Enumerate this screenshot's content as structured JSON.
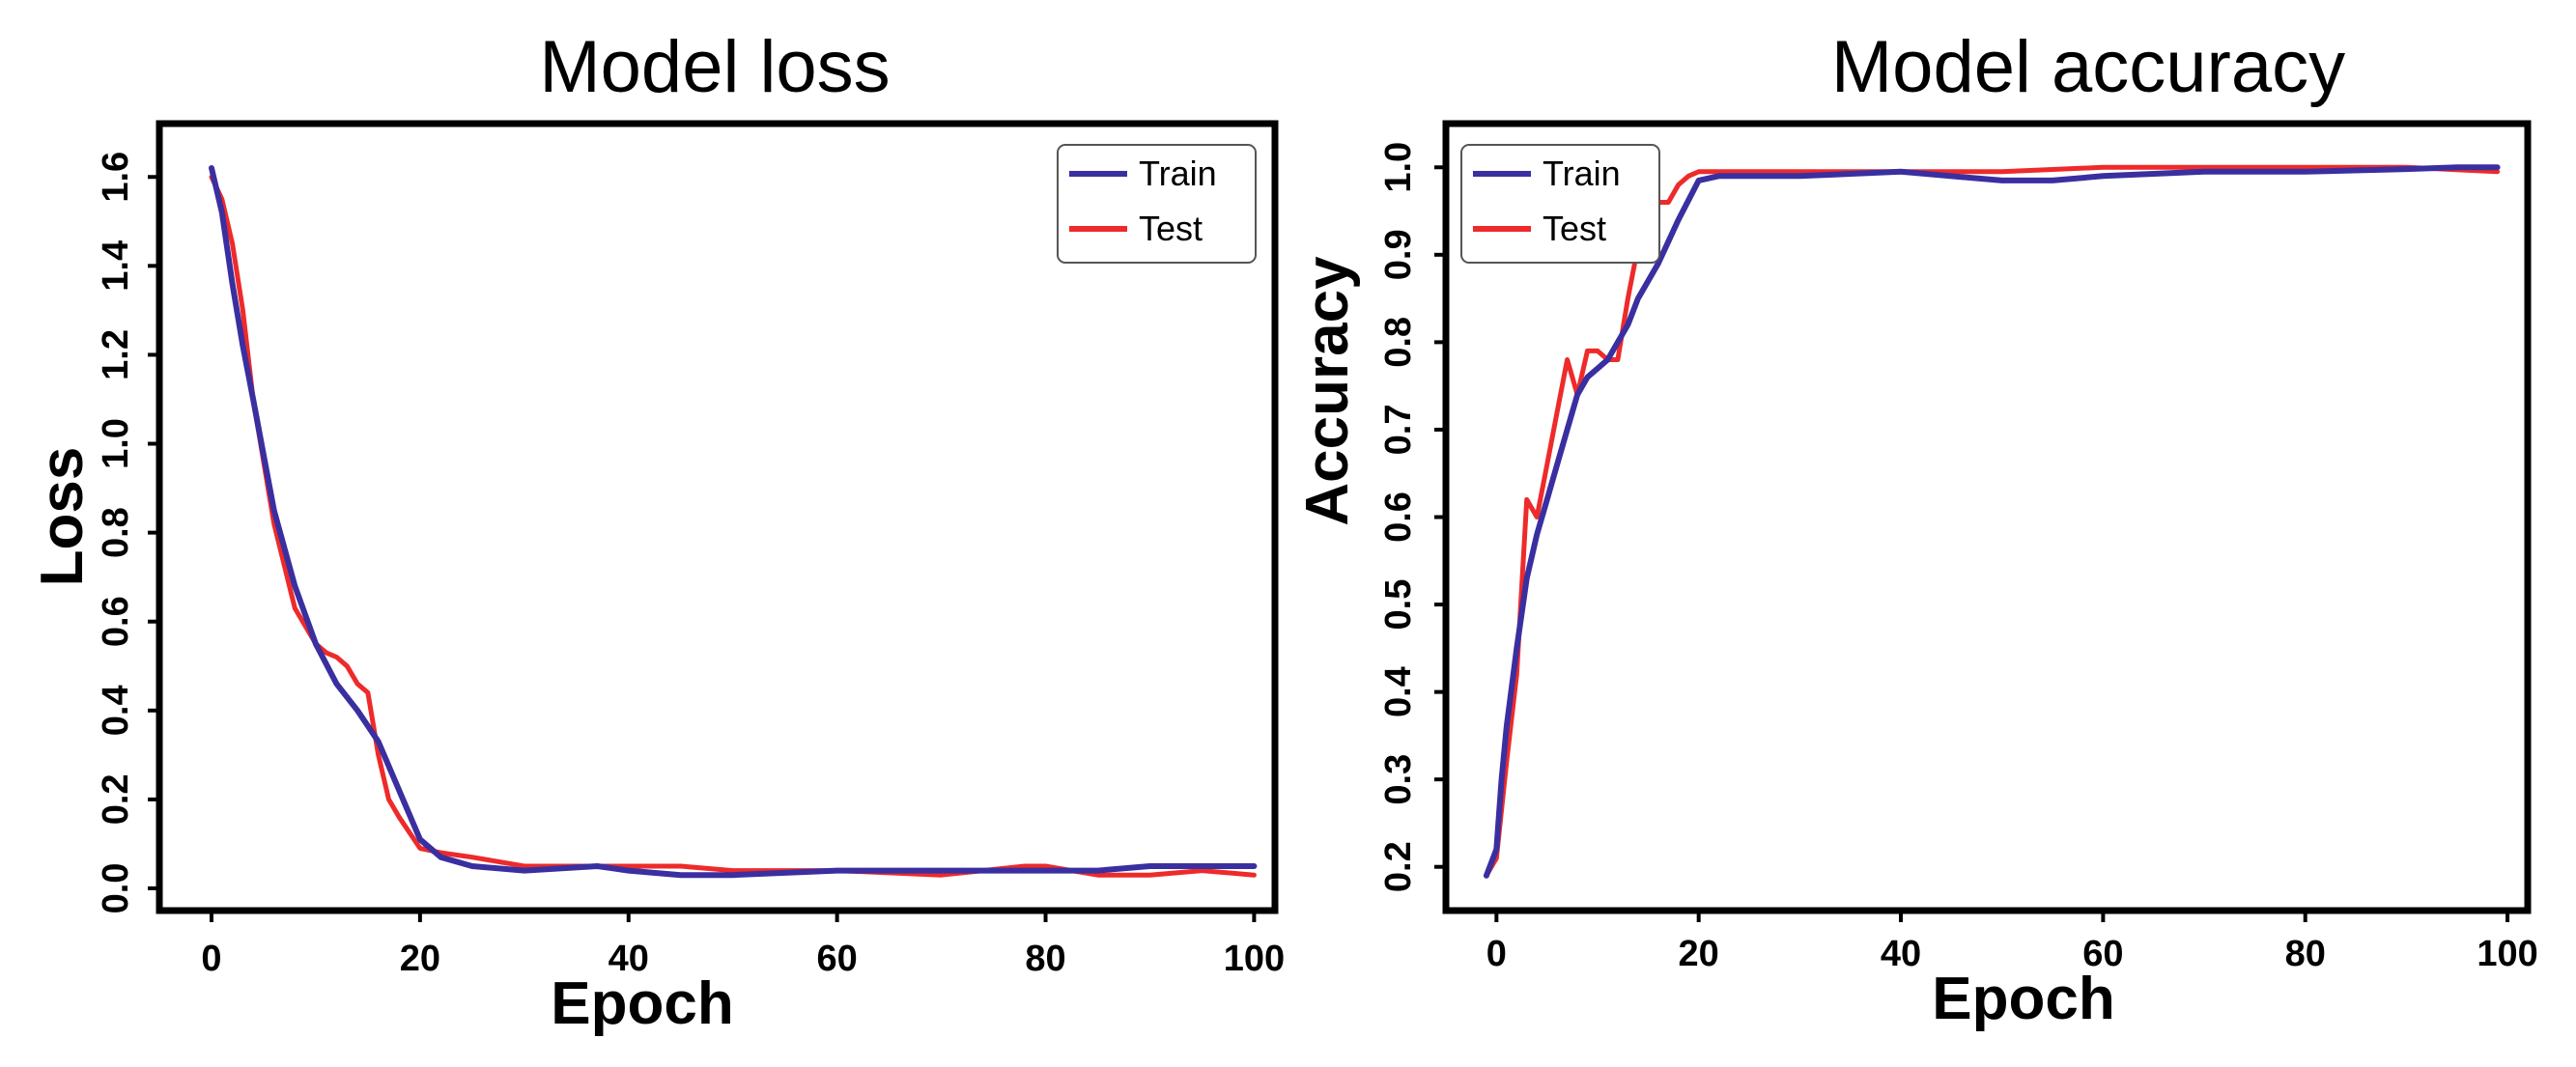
{
  "colors": {
    "train": "#3a2fa0",
    "test": "#ee2a2a"
  },
  "chart_data": [
    {
      "type": "line",
      "title": "Model loss",
      "xlabel": "Epoch",
      "ylabel": "Loss",
      "xlim": [
        -5,
        102
      ],
      "ylim": [
        -0.05,
        1.72
      ],
      "xticks": [
        0,
        20,
        40,
        60,
        80,
        100
      ],
      "xtick_labels": [
        "0",
        "20",
        "40",
        "60",
        "80",
        "100"
      ],
      "yticks": [
        0.0,
        0.2,
        0.4,
        0.6,
        0.8,
        1.0,
        1.2,
        1.4,
        1.6
      ],
      "ytick_labels": [
        "0.0",
        "0.2",
        "0.4",
        "0.6",
        "0.8",
        "1.0",
        "1.2",
        "1.4",
        "1.6"
      ],
      "legend": {
        "position": "top-right",
        "entries": [
          "Train",
          "Test"
        ]
      },
      "series": [
        {
          "name": "Train",
          "x": [
            0,
            1,
            2,
            3,
            4,
            6,
            8,
            10,
            12,
            14,
            16,
            18,
            20,
            22,
            25,
            30,
            37,
            40,
            45,
            50,
            60,
            70,
            80,
            85,
            90,
            95,
            100
          ],
          "y": [
            1.62,
            1.52,
            1.36,
            1.22,
            1.1,
            0.85,
            0.68,
            0.55,
            0.46,
            0.4,
            0.33,
            0.22,
            0.11,
            0.07,
            0.05,
            0.04,
            0.05,
            0.04,
            0.03,
            0.03,
            0.04,
            0.04,
            0.04,
            0.04,
            0.05,
            0.05,
            0.05
          ]
        },
        {
          "name": "Test",
          "x": [
            0,
            1,
            2,
            3,
            4,
            6,
            8,
            10,
            11,
            12,
            13,
            14,
            15,
            16,
            17,
            18,
            20,
            22,
            25,
            30,
            37,
            40,
            45,
            50,
            60,
            70,
            78,
            80,
            85,
            90,
            95,
            100
          ],
          "y": [
            1.6,
            1.55,
            1.45,
            1.3,
            1.1,
            0.82,
            0.63,
            0.55,
            0.53,
            0.52,
            0.5,
            0.46,
            0.44,
            0.3,
            0.2,
            0.16,
            0.09,
            0.08,
            0.07,
            0.05,
            0.05,
            0.05,
            0.05,
            0.04,
            0.04,
            0.03,
            0.05,
            0.05,
            0.03,
            0.03,
            0.04,
            0.03
          ]
        }
      ]
    },
    {
      "type": "line",
      "title": "Model accuracy",
      "xlabel": "Epoch",
      "ylabel": "Accuracy",
      "xlim": [
        -5,
        102
      ],
      "ylim": [
        0.15,
        1.05
      ],
      "xticks": [
        0,
        20,
        40,
        60,
        80,
        100
      ],
      "xtick_labels": [
        "0",
        "20",
        "40",
        "60",
        "80",
        "100"
      ],
      "yticks": [
        0.2,
        0.3,
        0.4,
        0.5,
        0.6,
        0.7,
        0.8,
        0.9,
        1.0
      ],
      "ytick_labels": [
        "0.2",
        "0.3",
        "0.4",
        "0.5",
        "0.6",
        "0.7",
        "0.8",
        "0.9",
        "1.0"
      ],
      "legend": {
        "position": "top-left",
        "entries": [
          "Train",
          "Test"
        ]
      },
      "series": [
        {
          "name": "Train",
          "x": [
            -1,
            0,
            0.5,
            1,
            2,
            3,
            4,
            5,
            6,
            7,
            8,
            9,
            10,
            11,
            12,
            13,
            14,
            16,
            18,
            20,
            22,
            30,
            40,
            50,
            55,
            60,
            70,
            80,
            90,
            95,
            99
          ],
          "y": [
            0.19,
            0.22,
            0.3,
            0.36,
            0.45,
            0.53,
            0.58,
            0.62,
            0.66,
            0.7,
            0.74,
            0.76,
            0.77,
            0.78,
            0.8,
            0.82,
            0.85,
            0.89,
            0.94,
            0.985,
            0.99,
            0.99,
            0.995,
            0.985,
            0.985,
            0.99,
            0.995,
            0.995,
            0.998,
            1.0,
            1.0
          ]
        },
        {
          "name": "Test",
          "x": [
            -1,
            0,
            1,
            2,
            3,
            4,
            5,
            6,
            7,
            8,
            9,
            10,
            11,
            12,
            13,
            14,
            15,
            16,
            17,
            18,
            19,
            20,
            22,
            30,
            40,
            50,
            60,
            70,
            80,
            90,
            99
          ],
          "y": [
            0.19,
            0.21,
            0.32,
            0.42,
            0.62,
            0.6,
            0.66,
            0.72,
            0.78,
            0.74,
            0.79,
            0.79,
            0.78,
            0.78,
            0.85,
            0.91,
            0.94,
            0.96,
            0.96,
            0.98,
            0.99,
            0.995,
            0.995,
            0.995,
            0.995,
            0.995,
            1.0,
            1.0,
            1.0,
            1.0,
            0.995
          ]
        }
      ]
    }
  ]
}
